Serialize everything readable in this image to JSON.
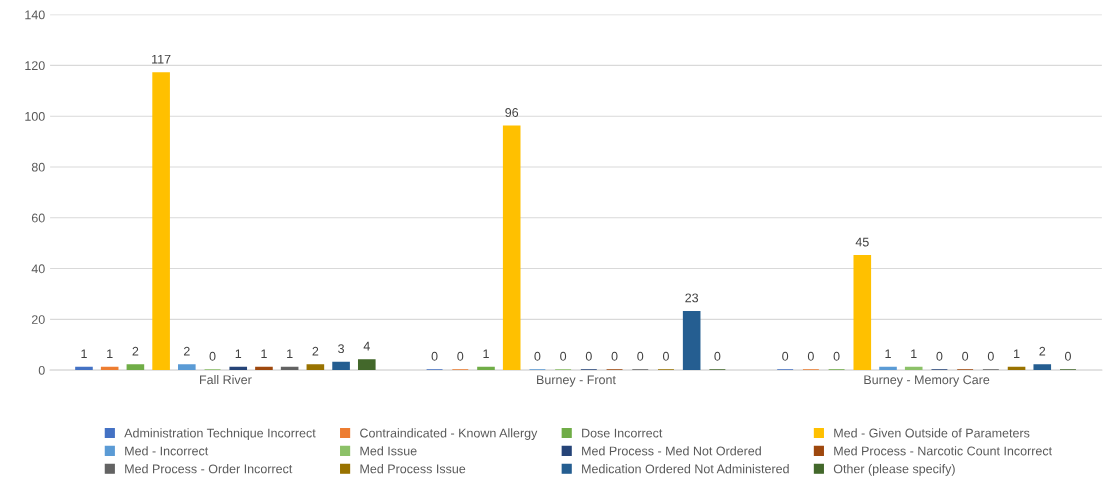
{
  "chart_data": {
    "type": "bar",
    "categories": [
      "Fall River",
      "Burney - Front",
      "Burney - Memory Care"
    ],
    "series": [
      {
        "name": "Administration Technique Incorrect",
        "color": "#4472c4",
        "values": [
          1,
          0,
          0
        ]
      },
      {
        "name": "Contraindicated - Known Allergy",
        "color": "#ed7d31",
        "values": [
          1,
          0,
          0
        ]
      },
      {
        "name": "Dose Incorrect",
        "color": "#70ad47",
        "values": [
          2,
          1,
          0
        ]
      },
      {
        "name": "Med - Given Outside of Parameters",
        "color": "#ffc000",
        "values": [
          117,
          96,
          45
        ]
      },
      {
        "name": "Med - Incorrect",
        "color": "#5b9bd5",
        "values": [
          2,
          0,
          1
        ]
      },
      {
        "name": "Med Issue",
        "color": "#8cc168",
        "values": [
          0,
          0,
          1
        ]
      },
      {
        "name": "Med Process - Med Not Ordered",
        "color": "#264478",
        "values": [
          1,
          0,
          0
        ]
      },
      {
        "name": "Med Process - Narcotic Count Incorrect",
        "color": "#9e480e",
        "values": [
          1,
          0,
          0
        ]
      },
      {
        "name": "Med Process - Order Incorrect",
        "color": "#636363",
        "values": [
          1,
          0,
          0
        ]
      },
      {
        "name": "Med Process Issue",
        "color": "#997300",
        "values": [
          2,
          0,
          1
        ]
      },
      {
        "name": "Medication Ordered Not Administered",
        "color": "#255e91",
        "values": [
          3,
          23,
          2
        ]
      },
      {
        "name": "Other (please specify)",
        "color": "#43682b",
        "values": [
          4,
          0,
          0
        ]
      }
    ],
    "ylim": [
      0,
      140
    ],
    "yticks": [
      0,
      20,
      40,
      60,
      80,
      100,
      120,
      140
    ],
    "grid": "y",
    "legend": "bottom",
    "data_labels": true
  }
}
